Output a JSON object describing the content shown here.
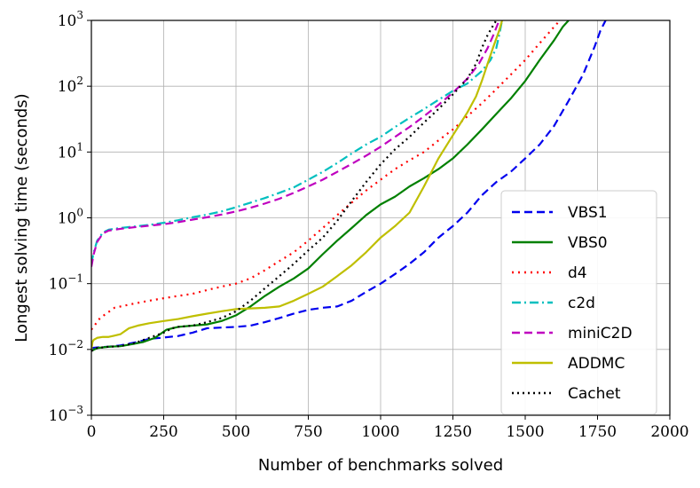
{
  "chart_data": {
    "type": "line",
    "title": "",
    "xlabel": "Number of benchmarks solved",
    "ylabel": "Longest solving time (seconds)",
    "xlim": [
      0,
      2000
    ],
    "ylim_log10": [
      -3,
      3
    ],
    "yscale": "log",
    "grid": true,
    "legend_position": "bottom-right",
    "x_ticks": [
      {
        "value": 0,
        "label": "0"
      },
      {
        "value": 250,
        "label": "250"
      },
      {
        "value": 500,
        "label": "500"
      },
      {
        "value": 750,
        "label": "750"
      },
      {
        "value": 1000,
        "label": "1000"
      },
      {
        "value": 1250,
        "label": "1250"
      },
      {
        "value": 1500,
        "label": "1500"
      },
      {
        "value": 1750,
        "label": "1750"
      },
      {
        "value": 2000,
        "label": "2000"
      }
    ],
    "y_ticks": [
      {
        "exp": -3,
        "base": "10",
        "sup": "−3"
      },
      {
        "exp": -2,
        "base": "10",
        "sup": "−2"
      },
      {
        "exp": -1,
        "base": "10",
        "sup": "−1"
      },
      {
        "exp": 0,
        "base": "10",
        "sup": "0"
      },
      {
        "exp": 1,
        "base": "10",
        "sup": "1"
      },
      {
        "exp": 2,
        "base": "10",
        "sup": "2"
      },
      {
        "exp": 3,
        "base": "10",
        "sup": "3"
      }
    ],
    "series": [
      {
        "name": "VBS1",
        "color": "#0000ee",
        "dash": "9,5",
        "x": [
          0,
          20,
          60,
          100,
          160,
          200,
          240,
          300,
          350,
          400,
          500,
          550,
          600,
          650,
          700,
          750,
          800,
          850,
          900,
          950,
          1000,
          1050,
          1100,
          1150,
          1200,
          1250,
          1300,
          1350,
          1400,
          1450,
          1500,
          1550,
          1600,
          1650,
          1700,
          1740,
          1760,
          1778
        ],
        "y": [
          0.0105,
          0.0107,
          0.011,
          0.0115,
          0.013,
          0.0145,
          0.015,
          0.016,
          0.018,
          0.021,
          0.022,
          0.023,
          0.026,
          0.03,
          0.035,
          0.04,
          0.043,
          0.045,
          0.055,
          0.075,
          0.1,
          0.14,
          0.2,
          0.3,
          0.5,
          0.75,
          1.2,
          2.2,
          3.5,
          5,
          8,
          13,
          25,
          60,
          150,
          400,
          700,
          1000
        ]
      },
      {
        "name": "VBS0",
        "color": "#008000",
        "dash": "",
        "x": [
          0,
          20,
          60,
          100,
          140,
          180,
          220,
          260,
          300,
          350,
          400,
          450,
          500,
          550,
          600,
          650,
          700,
          750,
          800,
          850,
          900,
          950,
          1000,
          1050,
          1100,
          1150,
          1200,
          1250,
          1300,
          1350,
          1400,
          1450,
          1500,
          1550,
          1600,
          1630,
          1650
        ],
        "y": [
          0.0095,
          0.0105,
          0.011,
          0.0112,
          0.012,
          0.013,
          0.015,
          0.02,
          0.022,
          0.023,
          0.024,
          0.027,
          0.033,
          0.045,
          0.065,
          0.09,
          0.12,
          0.17,
          0.28,
          0.45,
          0.7,
          1.1,
          1.6,
          2.1,
          3,
          4,
          5.5,
          8,
          13,
          22,
          38,
          65,
          120,
          250,
          500,
          800,
          1000
        ]
      },
      {
        "name": "d4",
        "color": "#ff0000",
        "dash": "2,5",
        "x": [
          0,
          30,
          80,
          150,
          200,
          250,
          300,
          350,
          400,
          450,
          500,
          550,
          600,
          650,
          700,
          750,
          800,
          850,
          900,
          950,
          1000,
          1050,
          1100,
          1150,
          1200,
          1250,
          1300,
          1350,
          1400,
          1450,
          1500,
          1550,
          1600,
          1620
        ],
        "y": [
          0.02,
          0.03,
          0.043,
          0.05,
          0.055,
          0.06,
          0.065,
          0.07,
          0.08,
          0.09,
          0.1,
          0.12,
          0.16,
          0.22,
          0.3,
          0.45,
          0.7,
          1.1,
          1.7,
          2.6,
          3.8,
          5.5,
          7.5,
          10,
          15,
          22,
          35,
          55,
          90,
          150,
          250,
          450,
          800,
          1000
        ]
      },
      {
        "name": "c2d",
        "color": "#00bfbf",
        "dash": "10,4,2,4",
        "x": [
          0,
          8,
          20,
          40,
          60,
          80,
          100,
          150,
          200,
          250,
          300,
          350,
          400,
          450,
          500,
          550,
          600,
          650,
          700,
          750,
          800,
          850,
          900,
          950,
          1000,
          1050,
          1100,
          1150,
          1200,
          1250,
          1300,
          1350,
          1380,
          1400,
          1410,
          1420
        ],
        "y": [
          0.2,
          0.3,
          0.45,
          0.6,
          0.66,
          0.68,
          0.7,
          0.74,
          0.78,
          0.84,
          0.92,
          1.02,
          1.12,
          1.25,
          1.45,
          1.7,
          2,
          2.4,
          2.9,
          3.8,
          5,
          6.8,
          9.5,
          13,
          17,
          24,
          33,
          45,
          62,
          85,
          110,
          170,
          250,
          380,
          600,
          1000
        ]
      },
      {
        "name": "miniC2D",
        "color": "#bf00bf",
        "dash": "9,5",
        "x": [
          0,
          8,
          20,
          40,
          60,
          80,
          100,
          150,
          200,
          250,
          300,
          350,
          400,
          450,
          500,
          550,
          600,
          650,
          700,
          750,
          800,
          850,
          900,
          950,
          1000,
          1050,
          1100,
          1150,
          1200,
          1250,
          1300,
          1340,
          1370,
          1390,
          1410
        ],
        "y": [
          0.18,
          0.28,
          0.43,
          0.58,
          0.64,
          0.66,
          0.68,
          0.72,
          0.76,
          0.8,
          0.86,
          0.94,
          1.02,
          1.12,
          1.25,
          1.42,
          1.65,
          1.95,
          2.4,
          3,
          3.8,
          5,
          6.6,
          8.8,
          12,
          17,
          24,
          35,
          52,
          80,
          130,
          220,
          380,
          600,
          1000
        ]
      },
      {
        "name": "ADDMC",
        "color": "#bfbf00",
        "dash": "",
        "x": [
          0,
          4,
          8,
          20,
          40,
          60,
          100,
          130,
          160,
          200,
          250,
          300,
          350,
          400,
          450,
          500,
          550,
          600,
          650,
          700,
          750,
          800,
          850,
          900,
          950,
          1000,
          1050,
          1100,
          1150,
          1200,
          1250,
          1300,
          1330,
          1350,
          1370,
          1390,
          1410,
          1420
        ],
        "y": [
          0.01,
          0.013,
          0.014,
          0.015,
          0.0155,
          0.0155,
          0.017,
          0.021,
          0.023,
          0.025,
          0.027,
          0.029,
          0.032,
          0.035,
          0.038,
          0.041,
          0.042,
          0.043,
          0.045,
          0.055,
          0.07,
          0.09,
          0.13,
          0.19,
          0.3,
          0.5,
          0.75,
          1.2,
          3,
          8,
          18,
          40,
          70,
          120,
          220,
          400,
          700,
          1000
        ]
      },
      {
        "name": "Cachet",
        "color": "#000000",
        "dash": "2,4",
        "x": [
          0,
          20,
          60,
          100,
          150,
          200,
          250,
          280,
          300,
          350,
          400,
          450,
          500,
          550,
          600,
          650,
          700,
          750,
          800,
          850,
          900,
          950,
          1000,
          1050,
          1100,
          1150,
          1200,
          1250,
          1300,
          1330,
          1350,
          1370,
          1390,
          1400
        ],
        "y": [
          0.0095,
          0.0105,
          0.011,
          0.0112,
          0.0125,
          0.015,
          0.018,
          0.021,
          0.022,
          0.023,
          0.026,
          0.03,
          0.038,
          0.055,
          0.085,
          0.13,
          0.2,
          0.32,
          0.5,
          0.9,
          1.8,
          3.5,
          6.5,
          11,
          17,
          28,
          45,
          75,
          130,
          220,
          380,
          600,
          850,
          1000
        ]
      }
    ]
  }
}
